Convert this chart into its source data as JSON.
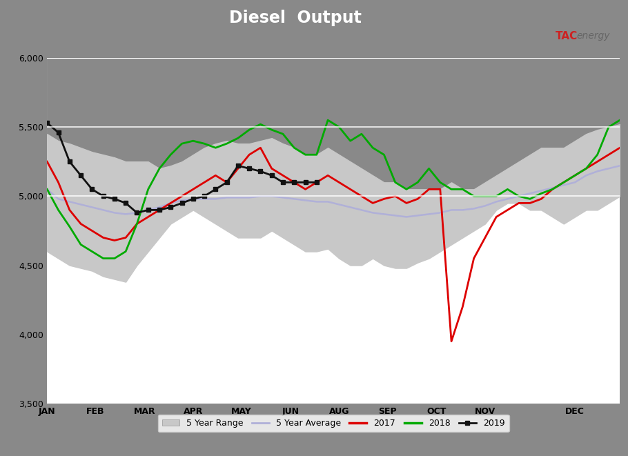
{
  "title": "Diesel  Output",
  "title_color": "white",
  "background_fig": "#898989",
  "background_plot": "white",
  "blue_bar_color": "#1e5fa8",
  "ylim": [
    3500,
    6000
  ],
  "yticks": [
    3500,
    4000,
    4500,
    5000,
    5500,
    6000
  ],
  "ytick_labels": [
    "3,500",
    "4,000",
    "4,500",
    "5,000",
    "5,500",
    "6,000"
  ],
  "hline_y": [
    5000,
    5500
  ],
  "hline_color": "white",
  "months": [
    "JAN",
    "FEB",
    "MAR",
    "APR",
    "MAY",
    "JUN",
    "AUG",
    "SEP",
    "OCT",
    "NOV",
    "DEC"
  ],
  "n_points": 52,
  "five_year_min": [
    4600,
    4550,
    4500,
    4480,
    4460,
    4420,
    4400,
    4380,
    4500,
    4600,
    4700,
    4800,
    4850,
    4900,
    4850,
    4800,
    4750,
    4700,
    4700,
    4700,
    4750,
    4700,
    4650,
    4600,
    4600,
    4620,
    4550,
    4500,
    4500,
    4550,
    4500,
    4480,
    4480,
    4520,
    4550,
    4600,
    4650,
    4700,
    4750,
    4800,
    4900,
    4950,
    4950,
    4900,
    4900,
    4850,
    4800,
    4850,
    4900,
    4900,
    4950,
    5000
  ],
  "five_year_max": [
    5450,
    5400,
    5380,
    5350,
    5320,
    5300,
    5280,
    5250,
    5250,
    5250,
    5200,
    5220,
    5250,
    5300,
    5350,
    5380,
    5400,
    5380,
    5380,
    5400,
    5420,
    5380,
    5350,
    5300,
    5300,
    5350,
    5300,
    5250,
    5200,
    5150,
    5100,
    5100,
    5050,
    5050,
    5050,
    5050,
    5100,
    5050,
    5050,
    5100,
    5150,
    5200,
    5250,
    5300,
    5350,
    5350,
    5350,
    5400,
    5450,
    5480,
    5500,
    5520
  ],
  "five_yr_avg": [
    5050,
    4980,
    4960,
    4940,
    4920,
    4900,
    4880,
    4870,
    4880,
    4900,
    4920,
    4950,
    4970,
    4980,
    4980,
    4980,
    4990,
    4990,
    4990,
    5000,
    5000,
    4990,
    4980,
    4970,
    4960,
    4960,
    4940,
    4920,
    4900,
    4880,
    4870,
    4860,
    4850,
    4860,
    4870,
    4880,
    4900,
    4900,
    4910,
    4930,
    4960,
    4980,
    5000,
    5020,
    5040,
    5060,
    5080,
    5100,
    5150,
    5180,
    5200,
    5220
  ],
  "y2017": [
    5250,
    5100,
    4900,
    4800,
    4750,
    4700,
    4680,
    4700,
    4800,
    4850,
    4900,
    4950,
    5000,
    5050,
    5100,
    5150,
    5100,
    5200,
    5300,
    5350,
    5200,
    5150,
    5100,
    5050,
    5100,
    5150,
    5100,
    5050,
    5000,
    4950,
    4980,
    5000,
    4950,
    4980,
    5050,
    5050,
    3950,
    4200,
    4550,
    4700,
    4850,
    4900,
    4950,
    4950,
    4980,
    5050,
    5100,
    5150,
    5200,
    5250,
    5300,
    5350
  ],
  "y2018": [
    5050,
    4900,
    4780,
    4650,
    4600,
    4550,
    4550,
    4600,
    4800,
    5050,
    5200,
    5300,
    5380,
    5400,
    5380,
    5350,
    5380,
    5420,
    5480,
    5520,
    5480,
    5450,
    5350,
    5300,
    5300,
    5550,
    5500,
    5400,
    5450,
    5350,
    5300,
    5100,
    5050,
    5100,
    5200,
    5100,
    5050,
    5050,
    5000,
    5000,
    5000,
    5050,
    5000,
    4980,
    5020,
    5050,
    5100,
    5150,
    5200,
    5300,
    5500,
    5550
  ],
  "y2019": [
    5530,
    5460,
    5250,
    5150,
    5050,
    5000,
    4980,
    4950,
    4880,
    4900,
    4900,
    4920,
    4950,
    4980,
    5000,
    5050,
    5100,
    5220,
    5200,
    5180,
    5150,
    5100,
    5100,
    5100,
    5100,
    null,
    null,
    null,
    null,
    null,
    null,
    null,
    null,
    null,
    null,
    null,
    null,
    null,
    null,
    null,
    null,
    null,
    null,
    null,
    null,
    null,
    null,
    null,
    null,
    null,
    null,
    null
  ],
  "range_color": "#c8c8c8",
  "avg_color": "#b0b0d8",
  "color2017": "#dd0000",
  "color2018": "#00aa00",
  "color2019": "#111111",
  "lw_lines": 2.0,
  "lw_avg": 1.8,
  "lw_2019": 2.0,
  "logo_tac_color": "#cc2222",
  "logo_energy_color": "#666666"
}
